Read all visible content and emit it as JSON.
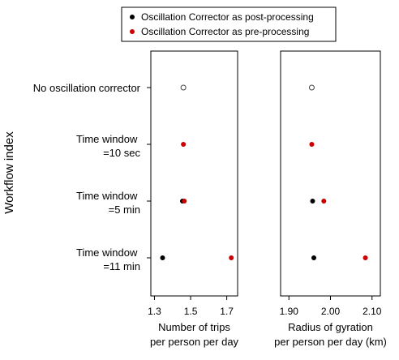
{
  "chart_data": {
    "type": "scatter",
    "ylabel": "Workflow index",
    "categories": [
      [
        "No oscillation corrector"
      ],
      [
        "Time window",
        "=10 sec"
      ],
      [
        "Time window",
        "=5 min"
      ],
      [
        "Time window",
        "=11 min"
      ]
    ],
    "legend": {
      "placement": "top",
      "entries": [
        {
          "label": "Oscillation Corrector as post-processing",
          "color": "#000000"
        },
        {
          "label": "Oscillation Corrector as pre-processing",
          "color": "#cc0000"
        }
      ]
    },
    "panels": [
      {
        "xlabel_lines": [
          "Number of trips",
          "per person per day"
        ],
        "xlim": [
          1.28,
          1.76
        ],
        "xticks": [
          1.3,
          1.5,
          1.7
        ],
        "tick_labels": [
          "1.3",
          "1.5",
          "1.7"
        ],
        "baseline": {
          "category": 0,
          "x": 1.46
        },
        "series": [
          {
            "name": "Oscillation Corrector as post-processing",
            "points": [
              {
                "category": 2,
                "x": 1.455
              },
              {
                "category": 3,
                "x": 1.345
              }
            ]
          },
          {
            "name": "Oscillation Corrector as pre-processing",
            "points": [
              {
                "category": 1,
                "x": 1.46
              },
              {
                "category": 2,
                "x": 1.465
              },
              {
                "category": 3,
                "x": 1.725
              }
            ]
          }
        ]
      },
      {
        "xlabel_lines": [
          "Radius of gyration",
          "per person per day (km)"
        ],
        "xlim": [
          1.88,
          2.12
        ],
        "xticks": [
          1.9,
          2.0,
          2.1
        ],
        "tick_labels": [
          "1.90",
          "2.00",
          "2.10"
        ],
        "baseline": {
          "category": 0,
          "x": 1.955
        },
        "series": [
          {
            "name": "Oscillation Corrector as post-processing",
            "points": [
              {
                "category": 2,
                "x": 1.957
              },
              {
                "category": 3,
                "x": 1.96
              }
            ]
          },
          {
            "name": "Oscillation Corrector as pre-processing",
            "points": [
              {
                "category": 1,
                "x": 1.955
              },
              {
                "category": 2,
                "x": 1.984
              },
              {
                "category": 3,
                "x": 2.084
              }
            ]
          }
        ]
      }
    ]
  }
}
